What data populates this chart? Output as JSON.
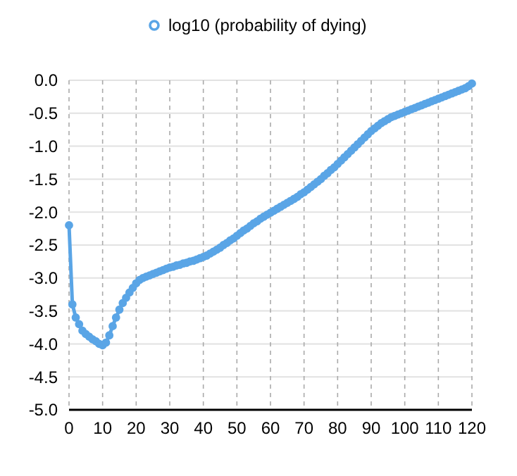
{
  "chart_data": {
    "type": "line",
    "x": [
      0,
      1,
      2,
      3,
      4,
      5,
      6,
      7,
      8,
      9,
      10,
      11,
      12,
      13,
      14,
      15,
      16,
      17,
      18,
      19,
      20,
      21,
      22,
      23,
      24,
      25,
      26,
      27,
      28,
      29,
      30,
      31,
      32,
      33,
      34,
      35,
      36,
      37,
      38,
      39,
      40,
      41,
      42,
      43,
      44,
      45,
      46,
      47,
      48,
      49,
      50,
      51,
      52,
      53,
      54,
      55,
      56,
      57,
      58,
      59,
      60,
      61,
      62,
      63,
      64,
      65,
      66,
      67,
      68,
      69,
      70,
      71,
      72,
      73,
      74,
      75,
      76,
      77,
      78,
      79,
      80,
      81,
      82,
      83,
      84,
      85,
      86,
      87,
      88,
      89,
      90,
      91,
      92,
      93,
      94,
      95,
      96,
      97,
      98,
      99,
      100,
      101,
      102,
      103,
      104,
      105,
      106,
      107,
      108,
      109,
      110,
      111,
      112,
      113,
      114,
      115,
      116,
      117,
      118,
      119,
      120
    ],
    "series": [
      {
        "name": "log10 (probability of dying)",
        "color": "#5aa5e6",
        "values": [
          -2.2,
          -3.4,
          -3.6,
          -3.7,
          -3.8,
          -3.85,
          -3.89,
          -3.93,
          -3.96,
          -4.0,
          -4.02,
          -3.98,
          -3.87,
          -3.73,
          -3.6,
          -3.48,
          -3.38,
          -3.3,
          -3.22,
          -3.15,
          -3.08,
          -3.03,
          -3.0,
          -2.98,
          -2.96,
          -2.94,
          -2.92,
          -2.9,
          -2.88,
          -2.86,
          -2.84,
          -2.83,
          -2.81,
          -2.8,
          -2.78,
          -2.77,
          -2.75,
          -2.74,
          -2.72,
          -2.7,
          -2.68,
          -2.66,
          -2.63,
          -2.6,
          -2.57,
          -2.54,
          -2.5,
          -2.47,
          -2.43,
          -2.4,
          -2.36,
          -2.32,
          -2.28,
          -2.25,
          -2.21,
          -2.17,
          -2.14,
          -2.1,
          -2.07,
          -2.04,
          -2.01,
          -1.98,
          -1.95,
          -1.92,
          -1.89,
          -1.86,
          -1.83,
          -1.8,
          -1.77,
          -1.73,
          -1.7,
          -1.66,
          -1.62,
          -1.58,
          -1.54,
          -1.5,
          -1.45,
          -1.41,
          -1.36,
          -1.32,
          -1.27,
          -1.22,
          -1.17,
          -1.12,
          -1.07,
          -1.02,
          -0.97,
          -0.92,
          -0.87,
          -0.82,
          -0.77,
          -0.73,
          -0.69,
          -0.65,
          -0.62,
          -0.59,
          -0.56,
          -0.54,
          -0.52,
          -0.5,
          -0.48,
          -0.46,
          -0.44,
          -0.42,
          -0.4,
          -0.38,
          -0.36,
          -0.34,
          -0.32,
          -0.3,
          -0.28,
          -0.26,
          -0.24,
          -0.22,
          -0.2,
          -0.18,
          -0.16,
          -0.14,
          -0.12,
          -0.09,
          -0.05
        ]
      }
    ],
    "xlim": [
      0,
      120
    ],
    "xticks": [
      0,
      10,
      20,
      30,
      40,
      50,
      60,
      70,
      80,
      90,
      100,
      110,
      120
    ],
    "ylim": [
      -5,
      0
    ],
    "yticks": [
      {
        "value": -5,
        "label": "-5.0"
      },
      {
        "value": -4.5,
        "label": "-4.5"
      },
      {
        "value": -4,
        "label": "-4.0"
      },
      {
        "value": -3.5,
        "label": "-3.5"
      },
      {
        "value": -3,
        "label": "-3.0"
      },
      {
        "value": -2.5,
        "label": "-2.5"
      },
      {
        "value": -2,
        "label": "-2.0"
      },
      {
        "value": -1.5,
        "label": "-1.5"
      },
      {
        "value": -1,
        "label": "-1.0"
      },
      {
        "value": -0.5,
        "label": "-0.5"
      },
      {
        "value": 0,
        "label": "0.0"
      }
    ],
    "grid": true,
    "legend": "top",
    "marker": "circle",
    "line_style": "solid"
  }
}
